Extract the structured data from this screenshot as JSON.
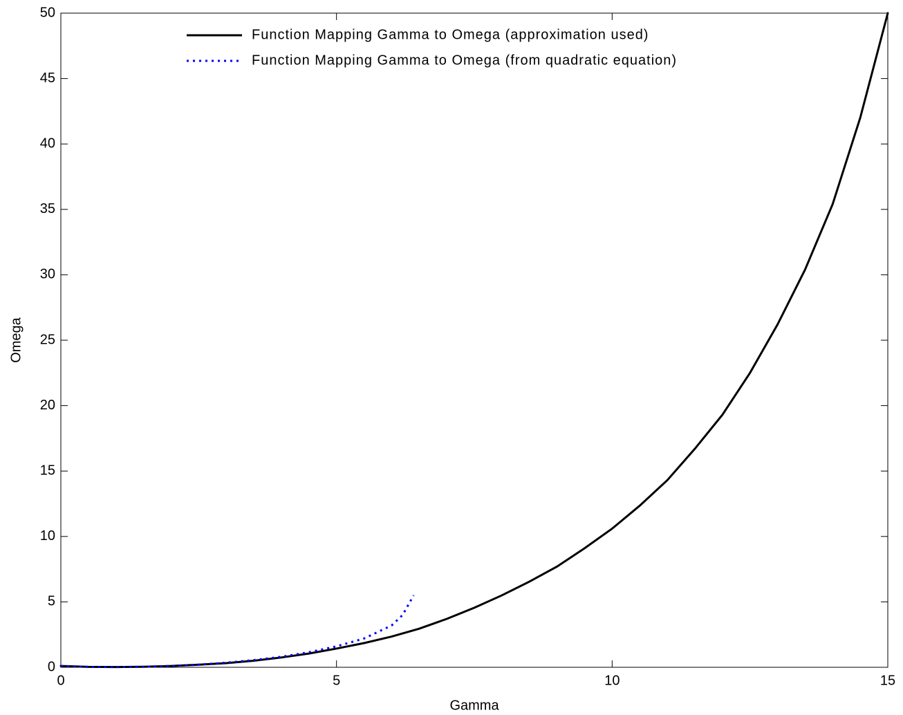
{
  "chart_data": {
    "type": "line",
    "xlabel": "Gamma",
    "ylabel": "Omega",
    "xlim": [
      0,
      15
    ],
    "xticks": [
      0,
      5,
      10,
      15
    ],
    "ylim": [
      0,
      50
    ],
    "yticks": [
      0,
      5,
      10,
      15,
      20,
      25,
      30,
      35,
      40,
      45,
      50
    ],
    "legend_loc": "upper center",
    "series": [
      {
        "name": "Function Mapping Gamma to Omega (approximation used)",
        "color": "#000000",
        "style": "solid",
        "x": [
          0,
          0.5,
          1,
          1.5,
          2,
          2.5,
          3,
          3.5,
          4,
          4.5,
          5,
          5.5,
          6,
          6.5,
          7,
          7.5,
          8,
          8.5,
          9,
          9.5,
          10,
          10.5,
          11,
          11.5,
          12,
          12.5,
          13,
          13.5,
          14,
          14.5,
          15
        ],
        "values": [
          0.1,
          0.03,
          0.02,
          0.04,
          0.1,
          0.2,
          0.32,
          0.5,
          0.75,
          1.05,
          1.43,
          1.85,
          2.35,
          2.95,
          3.7,
          4.55,
          5.5,
          6.55,
          7.7,
          9.1,
          10.6,
          12.35,
          14.3,
          16.7,
          19.3,
          22.5,
          26.2,
          30.4,
          35.4,
          42,
          50
        ]
      },
      {
        "name": "Function Mapping Gamma to Omega (from quadratic equation)",
        "color": "#0000ff",
        "style": "dotted",
        "x": [
          0,
          0.5,
          1,
          1.5,
          2,
          2.5,
          3,
          3.5,
          4,
          4.5,
          5,
          5.5,
          6,
          6.2,
          6.4
        ],
        "values": [
          0.1,
          0.03,
          0.02,
          0.04,
          0.1,
          0.2,
          0.35,
          0.55,
          0.8,
          1.15,
          1.6,
          2.2,
          3.2,
          4.0,
          5.5
        ]
      }
    ]
  }
}
